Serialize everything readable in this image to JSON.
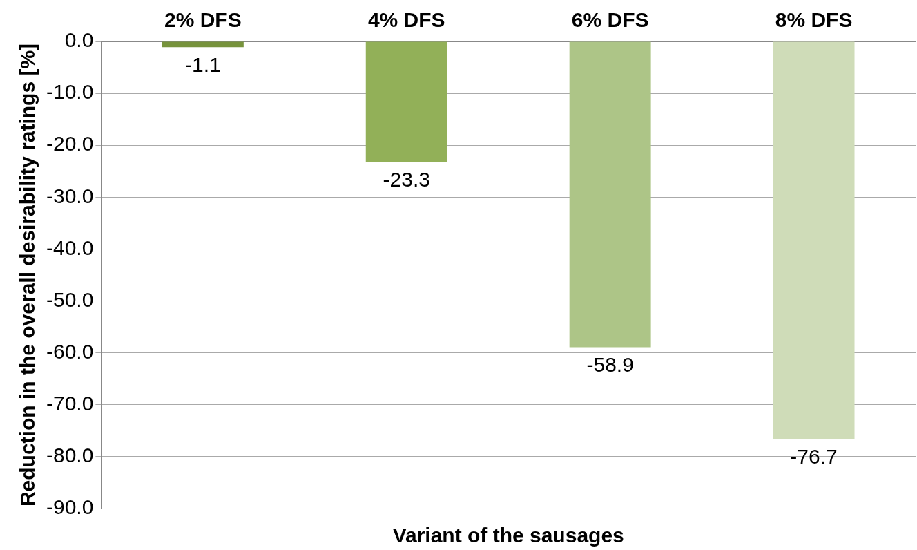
{
  "chart_data": {
    "type": "bar",
    "xlabel": "Variant of the sausages",
    "ylabel": "Reduction in the overall desirability ratings [%]",
    "categories": [
      "2% DFS",
      "4% DFS",
      "6% DFS",
      "8% DFS"
    ],
    "values": [
      -1.1,
      -23.3,
      -58.9,
      -76.7
    ],
    "colors": [
      "#77933c",
      "#92b058",
      "#adc587",
      "#cfdcb8"
    ],
    "ylim": [
      -90,
      0
    ],
    "yticks": [
      {
        "value": 0,
        "label": "0.0"
      },
      {
        "value": -10,
        "label": "-10.0"
      },
      {
        "value": -20,
        "label": "-20.0"
      },
      {
        "value": -30,
        "label": "-30.0"
      },
      {
        "value": -40,
        "label": "-40.0"
      },
      {
        "value": -50,
        "label": "-50.0"
      },
      {
        "value": -60,
        "label": "-60.0"
      },
      {
        "value": -70,
        "label": "-70.0"
      },
      {
        "value": -80,
        "label": "-80.0"
      },
      {
        "value": -90,
        "label": "-90.0"
      }
    ],
    "grid": "y",
    "data_labels": true,
    "legend": false
  }
}
